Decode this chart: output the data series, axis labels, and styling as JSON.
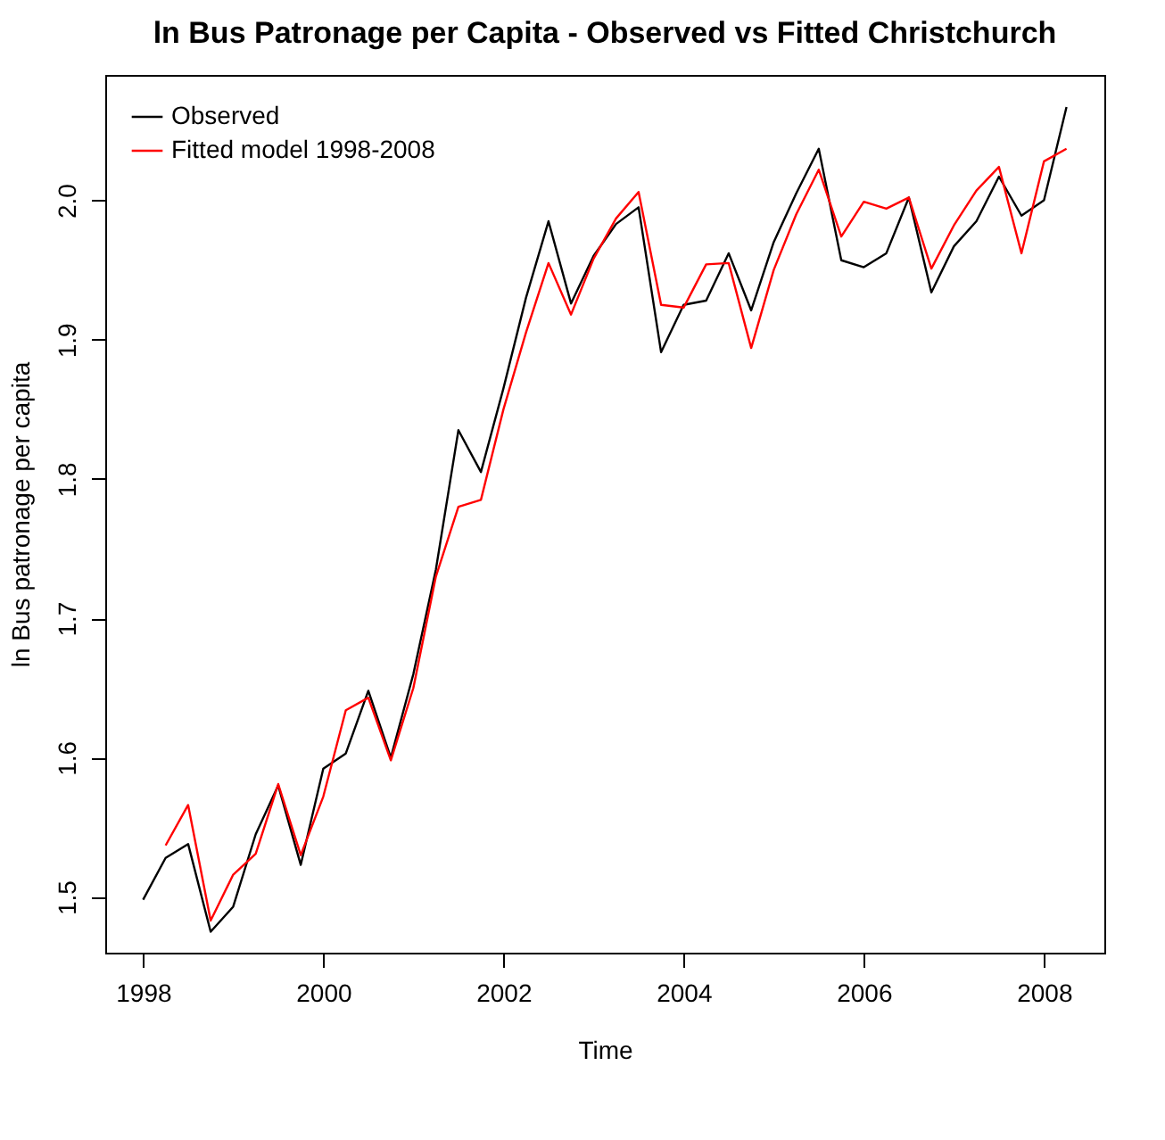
{
  "chart_data": {
    "type": "line",
    "title": "ln Bus Patronage per Capita - Observed vs Fitted Christchurch",
    "xlabel": "Time",
    "ylabel": "ln Bus patronage per capita",
    "xlim": [
      1997.58,
      2008.67
    ],
    "xticks": [
      1998,
      2000,
      2002,
      2004,
      2006,
      2008
    ],
    "ylim": [
      1.46,
      2.09
    ],
    "yticks": [
      1.5,
      1.6,
      1.7,
      1.8,
      1.9,
      {
        "value": 2,
        "label": "2.0"
      }
    ],
    "grid": false,
    "legend": "top left",
    "line_style": "solid",
    "series": [
      {
        "name": "Observed",
        "color": "#000000",
        "x": [
          1998,
          1998.25,
          1998.5,
          1998.75,
          1999,
          1999.25,
          1999.5,
          1999.75,
          2000,
          2000.25,
          2000.5,
          2000.75,
          2001,
          2001.25,
          2001.5,
          2001.75,
          2002,
          2002.25,
          2002.5,
          2002.75,
          2003,
          2003.25,
          2003.5,
          2003.75,
          2004,
          2004.25,
          2004.5,
          2004.75,
          2005,
          2005.25,
          2005.5,
          2005.75,
          2006,
          2006.25,
          2006.5,
          2006.75,
          2007,
          2007.25,
          2007.5,
          2007.75,
          2008,
          2008.25
        ],
        "values": [
          1.498,
          1.528,
          1.538,
          1.475,
          1.493,
          1.545,
          1.58,
          1.523,
          1.592,
          1.603,
          1.648,
          1.6,
          1.66,
          1.735,
          1.835,
          1.805,
          1.865,
          1.93,
          1.985,
          1.926,
          1.96,
          1.983,
          1.995,
          1.891,
          1.925,
          1.928,
          1.962,
          1.921,
          1.97,
          2.005,
          2.037,
          1.957,
          1.952,
          1.962,
          2.002,
          1.934,
          1.967,
          1.985,
          2.017,
          1.989,
          2.0,
          2.067
        ]
      },
      {
        "name": "Fitted model 1998-2008",
        "color": "#ff0000",
        "x": [
          1998.25,
          1998.5,
          1998.75,
          1999,
          1999.25,
          1999.5,
          1999.75,
          2000,
          2000.25,
          2000.5,
          2000.75,
          2001,
          2001.25,
          2001.5,
          2001.75,
          2002,
          2002.25,
          2002.5,
          2002.75,
          2003,
          2003.25,
          2003.5,
          2003.75,
          2004,
          2004.25,
          2004.5,
          2004.75,
          2005,
          2005.25,
          2005.5,
          2005.75,
          2006,
          2006.25,
          2006.5,
          2006.75,
          2007,
          2007.25,
          2007.5,
          2007.75,
          2008,
          2008.25
        ],
        "values": [
          1.537,
          1.566,
          1.483,
          1.516,
          1.531,
          1.581,
          1.53,
          1.572,
          1.634,
          1.643,
          1.598,
          1.65,
          1.73,
          1.78,
          1.785,
          1.85,
          1.905,
          1.955,
          1.918,
          1.958,
          1.987,
          2.006,
          1.925,
          1.923,
          1.954,
          1.955,
          1.894,
          1.95,
          1.99,
          2.022,
          1.974,
          1.999,
          1.994,
          2.002,
          1.951,
          1.982,
          2.007,
          2.024,
          1.962,
          2.028,
          2.037
        ]
      }
    ]
  }
}
